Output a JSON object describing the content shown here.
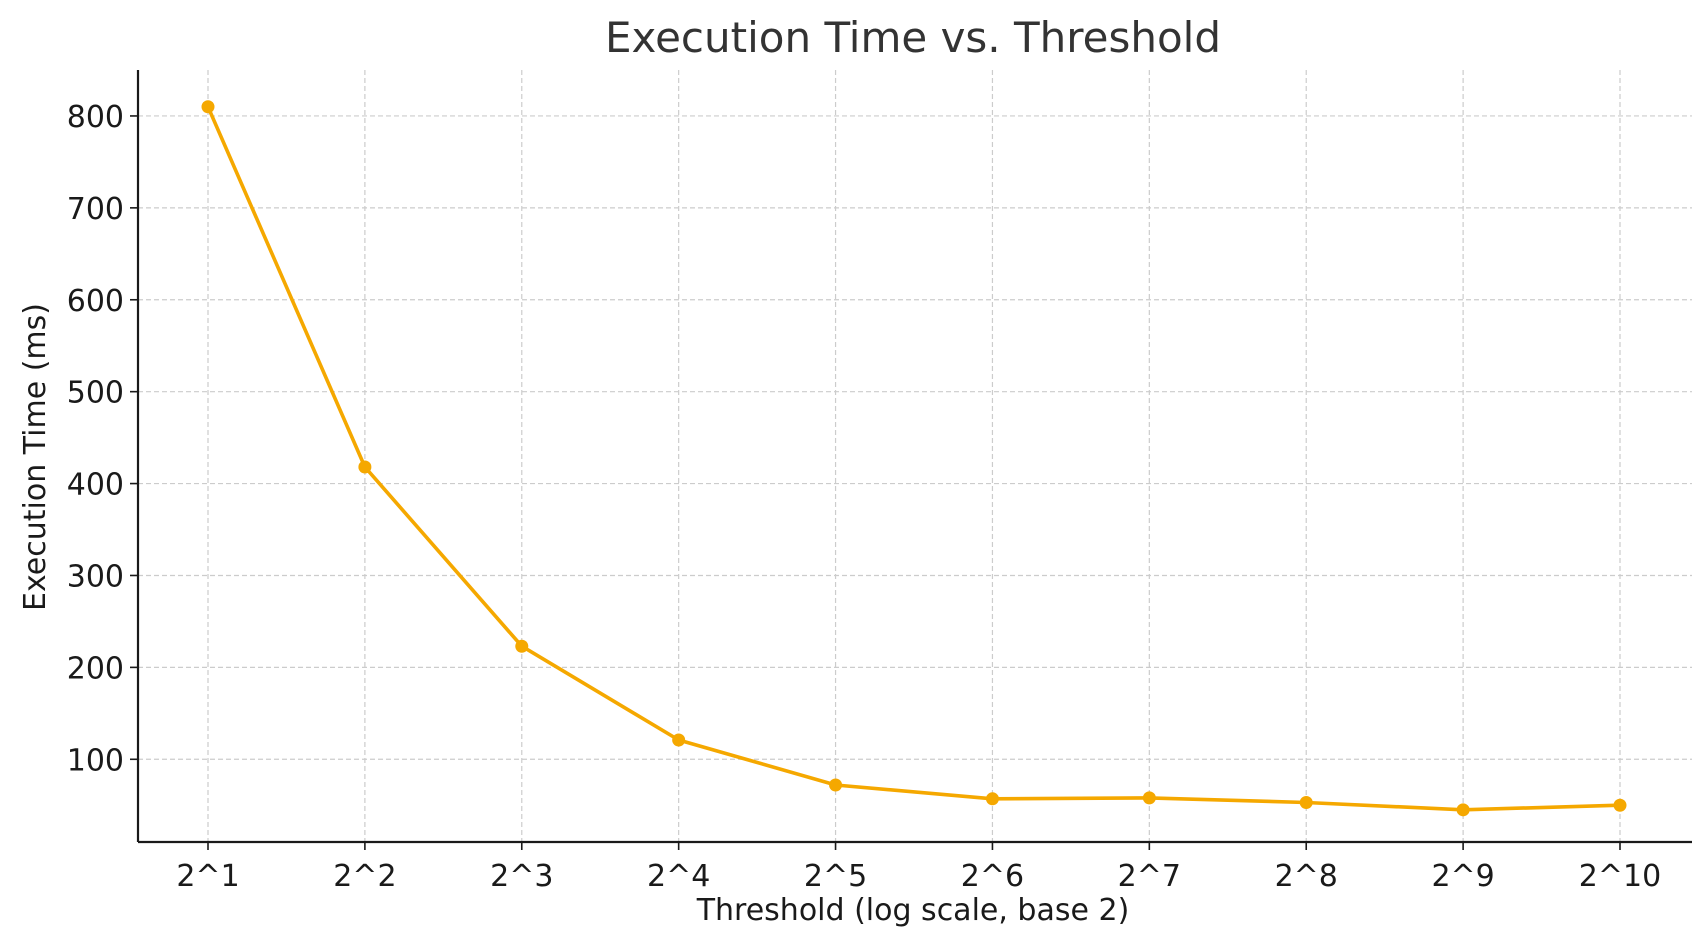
{
  "chart_data": {
    "type": "line",
    "title": "Execution Time vs. Threshold",
    "xlabel": "Threshold (log scale, base 2)",
    "ylabel": "Execution Time (ms)",
    "x_scale": "log2",
    "x": [
      2,
      4,
      8,
      16,
      32,
      64,
      128,
      256,
      512,
      1024
    ],
    "x_tick_labels": [
      "2^1",
      "2^2",
      "2^3",
      "2^4",
      "2^5",
      "2^6",
      "2^7",
      "2^8",
      "2^9",
      "2^10"
    ],
    "y_ticks": [
      100,
      200,
      300,
      400,
      500,
      600,
      700,
      800
    ],
    "ylim": [
      10,
      850
    ],
    "grid": true,
    "series": [
      {
        "color": "#f5a800",
        "marker": "circle",
        "values": [
          810,
          418,
          223,
          121,
          72,
          57,
          58,
          53,
          45,
          50
        ]
      }
    ]
  }
}
